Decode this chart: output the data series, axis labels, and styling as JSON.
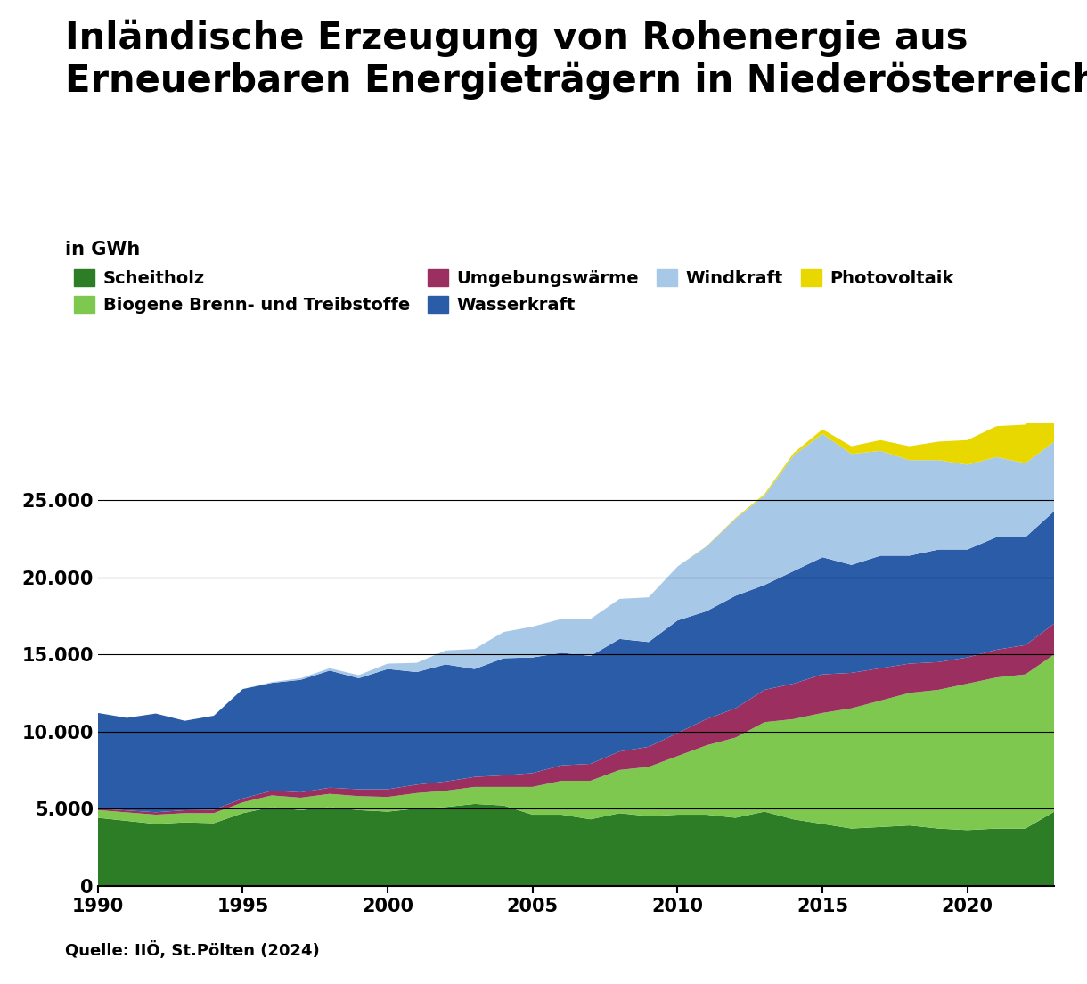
{
  "title": "Inländische Erzeugung von Rohenergie aus\nErneuerbaren Energieträgern in Niederösterreich",
  "ylabel": "in GWh",
  "source": "Quelle: IIÖ, St.Pölten (2024)",
  "years": [
    1990,
    1991,
    1992,
    1993,
    1994,
    1995,
    1996,
    1997,
    1998,
    1999,
    2000,
    2001,
    2002,
    2003,
    2004,
    2005,
    2006,
    2007,
    2008,
    2009,
    2010,
    2011,
    2012,
    2013,
    2014,
    2015,
    2016,
    2017,
    2018,
    2019,
    2020,
    2021,
    2022,
    2023
  ],
  "series": {
    "Scheitholz": [
      4400,
      4200,
      4000,
      4100,
      4050,
      4700,
      5100,
      4900,
      5100,
      4900,
      4800,
      5000,
      5100,
      5300,
      5200,
      4600,
      4600,
      4300,
      4700,
      4500,
      4600,
      4600,
      4400,
      4800,
      4300,
      4000,
      3700,
      3800,
      3900,
      3700,
      3600,
      3700,
      3700,
      4800
    ],
    "Biogene Brenn- und Treibstoffe": [
      500,
      550,
      600,
      600,
      650,
      700,
      750,
      800,
      850,
      900,
      950,
      1000,
      1050,
      1100,
      1200,
      1800,
      2200,
      2500,
      2800,
      3200,
      3800,
      4500,
      5200,
      5800,
      6500,
      7200,
      7800,
      8200,
      8600,
      9000,
      9500,
      9800,
      10000,
      10200
    ],
    "Umgebungswärme": [
      100,
      130,
      160,
      190,
      220,
      250,
      300,
      350,
      400,
      450,
      500,
      550,
      600,
      650,
      750,
      900,
      1000,
      1100,
      1200,
      1300,
      1500,
      1700,
      1900,
      2100,
      2300,
      2500,
      2300,
      2100,
      1900,
      1800,
      1700,
      1800,
      1900,
      2000
    ],
    "Wasserkraft": [
      6200,
      6000,
      6400,
      5800,
      6100,
      7100,
      7000,
      7300,
      7600,
      7200,
      7800,
      7300,
      7600,
      7000,
      7600,
      7500,
      7300,
      7000,
      7300,
      6800,
      7300,
      7000,
      7300,
      6800,
      7300,
      7600,
      7000,
      7300,
      7000,
      7300,
      7000,
      7300,
      7000,
      7300
    ],
    "Windkraft": [
      0,
      0,
      0,
      0,
      0,
      0,
      50,
      100,
      150,
      200,
      350,
      600,
      900,
      1300,
      1700,
      2000,
      2200,
      2400,
      2600,
      2900,
      3500,
      4200,
      5000,
      5800,
      7500,
      8000,
      7200,
      6800,
      6200,
      5800,
      5500,
      5200,
      4800,
      4500
    ],
    "Photovoltaik": [
      0,
      0,
      0,
      0,
      0,
      0,
      0,
      0,
      0,
      0,
      0,
      0,
      0,
      0,
      0,
      0,
      0,
      0,
      0,
      0,
      0,
      20,
      50,
      100,
      150,
      300,
      500,
      700,
      900,
      1200,
      1600,
      2000,
      2500,
      3000
    ]
  },
  "colors": {
    "Scheitholz": "#2d7d27",
    "Biogene Brenn- und Treibstoffe": "#7ec850",
    "Umgebungswärme": "#9b3060",
    "Wasserkraft": "#2b5ca8",
    "Windkraft": "#a8c8e8",
    "Photovoltaik": "#e8d800"
  },
  "legend_order": [
    "Scheitholz",
    "Biogene Brenn- und Treibstoffe",
    "Umgebungswärme",
    "Wasserkraft",
    "Windkraft",
    "Photovoltaik"
  ],
  "yticks": [
    0,
    5000,
    10000,
    15000,
    20000,
    25000
  ],
  "ytick_labels": [
    "0",
    "5.000",
    "10.000",
    "15.000",
    "20.000",
    "25.000"
  ],
  "xticks": [
    1990,
    1995,
    2000,
    2005,
    2010,
    2015,
    2020
  ],
  "ylim": [
    0,
    30000
  ],
  "xlim": [
    1990,
    2023
  ],
  "background_color": "#ffffff",
  "title_fontsize": 30,
  "axis_fontsize": 15,
  "legend_fontsize": 14,
  "source_fontsize": 13
}
